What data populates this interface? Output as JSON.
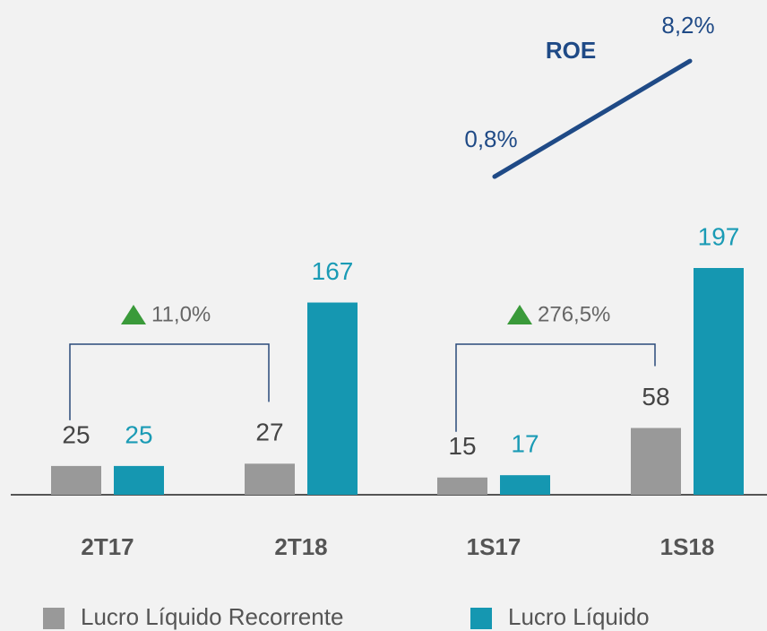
{
  "chart_data": {
    "type": "bar",
    "categories": [
      "2T17",
      "2T18",
      "1S17",
      "1S18"
    ],
    "series": [
      {
        "name": "Lucro Líquido Recorrente",
        "color": "#999999",
        "values": [
          25,
          27,
          15,
          58
        ]
      },
      {
        "name": "Lucro Líquido",
        "color": "#1597b1",
        "values": [
          25,
          167,
          17,
          197
        ]
      }
    ],
    "annotations": [
      "11,0%",
      "276,5%"
    ],
    "roe": {
      "title": "ROE",
      "color": "#1f4a86",
      "values": [
        0.8,
        8.2
      ],
      "value_labels": [
        "0,8%",
        "8,2%"
      ]
    }
  }
}
